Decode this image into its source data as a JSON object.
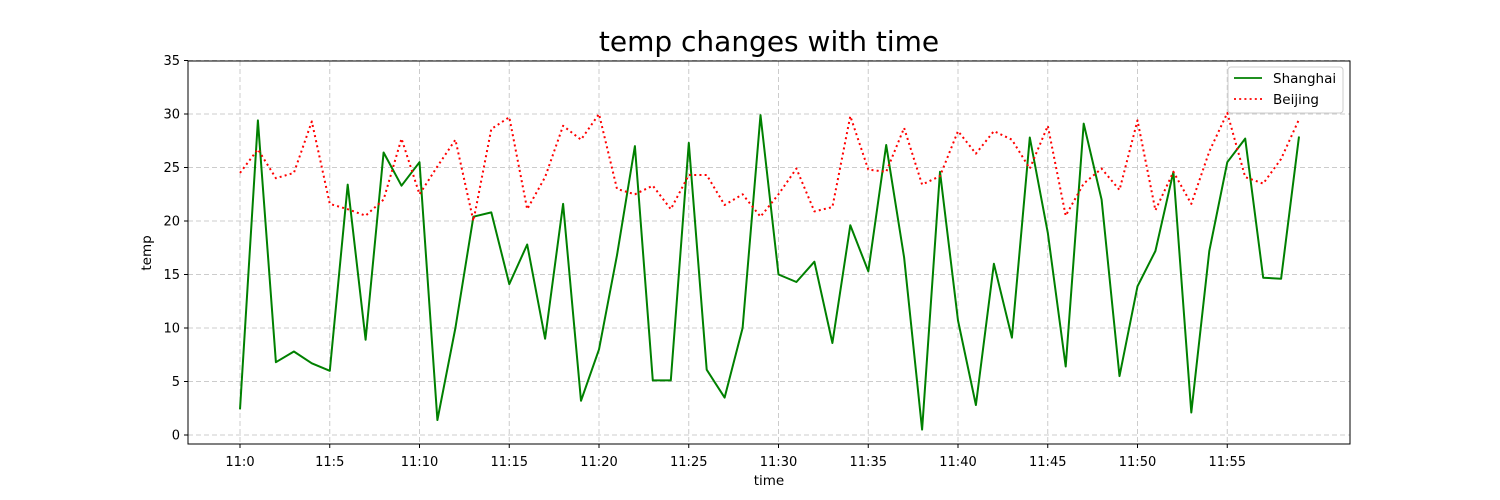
{
  "chart_data": {
    "type": "line",
    "title": "temp changes with time",
    "xlabel": "time",
    "ylabel": "temp",
    "ylim": [
      -1,
      35
    ],
    "yticks": [
      0,
      5,
      10,
      15,
      20,
      25,
      30,
      35
    ],
    "x_tick_labels": [
      "11:0",
      "11:5",
      "11:10",
      "11:15",
      "11:20",
      "11:25",
      "11:30",
      "11:35",
      "11:40",
      "11:45",
      "11:50",
      "11:55"
    ],
    "x_tick_minutes": [
      0,
      5,
      10,
      15,
      20,
      25,
      30,
      35,
      40,
      45,
      50,
      55
    ],
    "x_minutes": [
      0,
      1,
      2,
      3,
      4,
      5,
      6,
      7,
      8,
      9,
      10,
      11,
      12,
      13,
      14,
      15,
      16,
      17,
      18,
      19,
      20,
      21,
      22,
      23,
      24,
      25,
      26,
      27,
      28,
      29,
      30,
      31,
      32,
      33,
      34,
      35,
      36,
      37,
      38,
      39,
      40,
      41,
      42,
      43,
      44,
      45,
      46,
      47,
      48,
      49,
      50,
      51,
      52,
      53,
      54,
      55,
      56,
      57,
      58,
      59
    ],
    "grid": true,
    "legend_position": "top-right",
    "series": [
      {
        "name": "Shanghai",
        "color": "#008000",
        "style": "solid",
        "values": [
          2.4,
          29.4,
          6.8,
          7.8,
          6.7,
          6.0,
          23.4,
          8.9,
          26.4,
          23.3,
          25.5,
          1.4,
          10.0,
          20.4,
          20.8,
          14.1,
          17.8,
          9.0,
          21.6,
          3.2,
          8.0,
          16.8,
          27.0,
          5.1,
          5.1,
          27.3,
          6.1,
          3.5,
          10.0,
          29.9,
          15.0,
          14.3,
          16.2,
          8.6,
          19.6,
          15.3,
          27.1,
          16.6,
          0.5,
          24.6,
          10.7,
          2.8,
          16.0,
          9.1,
          27.8,
          18.9,
          6.4,
          29.1,
          22.0,
          5.5,
          13.9,
          17.2,
          24.6,
          2.1,
          17.2,
          25.5,
          27.7,
          14.7,
          14.6,
          27.9
        ]
      },
      {
        "name": "Beijing",
        "color": "#ff0000",
        "style": "dotted",
        "values": [
          24.5,
          26.7,
          24.0,
          24.5,
          29.3,
          21.6,
          21.1,
          20.5,
          22.0,
          27.7,
          22.5,
          25.1,
          27.6,
          20.0,
          28.6,
          29.7,
          21.1,
          24.1,
          28.9,
          27.6,
          30.0,
          23.0,
          22.5,
          23.3,
          21.1,
          24.3,
          24.3,
          21.5,
          22.5,
          20.4,
          22.5,
          24.9,
          20.9,
          21.3,
          29.8,
          24.8,
          24.6,
          28.7,
          23.4,
          24.2,
          28.4,
          26.3,
          28.4,
          27.6,
          24.9,
          28.9,
          20.5,
          23.5,
          24.9,
          22.9,
          29.4,
          21.0,
          24.6,
          21.6,
          26.5,
          30.1,
          24.1,
          23.5,
          25.8,
          29.5
        ]
      }
    ]
  }
}
